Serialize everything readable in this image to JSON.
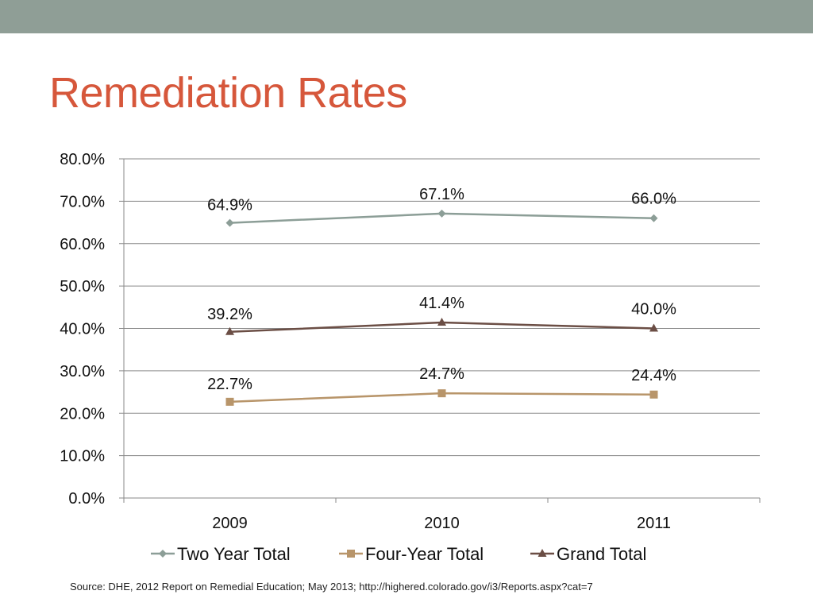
{
  "slide": {
    "title": "Remediation Rates",
    "title_color": "#d6573b",
    "top_bar_color": "#8f9e96",
    "source": "Source: DHE, 2012 Report on Remedial Education; May 2013; http://highered.colorado.gov/i3/Reports.aspx?cat=7"
  },
  "chart_data": {
    "type": "line",
    "title": "",
    "xlabel": "",
    "ylabel": "",
    "categories": [
      "2009",
      "2010",
      "2011"
    ],
    "ylim": [
      0,
      80
    ],
    "y_ticks": [
      0,
      10,
      20,
      30,
      40,
      50,
      60,
      70,
      80
    ],
    "y_tick_labels": [
      "0.0%",
      "10.0%",
      "20.0%",
      "30.0%",
      "40.0%",
      "50.0%",
      "60.0%",
      "70.0%",
      "80.0%"
    ],
    "grid": true,
    "legend": "bottom",
    "series": [
      {
        "name": "Two Year Total",
        "values": [
          64.9,
          67.1,
          66.0
        ],
        "labels": [
          "64.9%",
          "67.1%",
          "66.0%"
        ],
        "color": "#8c9e97",
        "marker": "diamond"
      },
      {
        "name": "Four-Year Total",
        "values": [
          22.7,
          24.7,
          24.4
        ],
        "labels": [
          "22.7%",
          "24.7%",
          "24.4%"
        ],
        "color": "#b8956a",
        "marker": "square"
      },
      {
        "name": "Grand Total",
        "values": [
          39.2,
          41.4,
          40.0
        ],
        "labels": [
          "39.2%",
          "41.4%",
          "40.0%"
        ],
        "color": "#6b4e45",
        "marker": "triangle"
      }
    ]
  }
}
